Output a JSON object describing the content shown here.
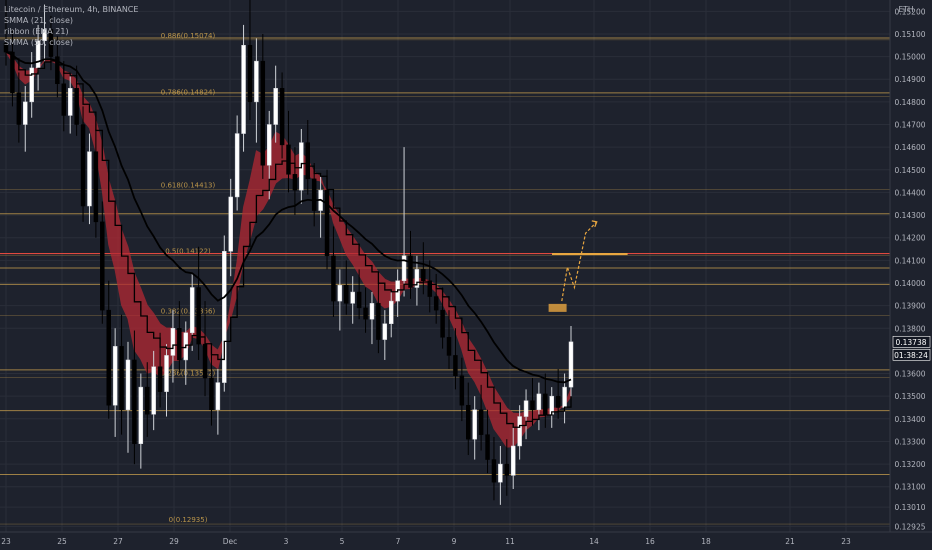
{
  "legend": {
    "symbol": "Litecoin / Ethereum, 4h, BINANCE",
    "smma21": "SMMA (21, close)",
    "ribbon": "ribbon (EMA 21)",
    "smma50": "SMMA (50, close)"
  },
  "currency": "ETH",
  "last_price": "0.13738",
  "countdown": "01:38:24",
  "colors": {
    "background": "#1e222d",
    "grid": "#2a2e39",
    "bull": "#ffffff",
    "bear": "#000000",
    "ribbon": "#b22833",
    "smma": "#000000",
    "fib": "#c9a04d",
    "resistance": "#e0493f",
    "target": "#e8a640"
  },
  "chart_data": {
    "type": "candlestick",
    "y_axis": {
      "min": 0.129,
      "max": 0.1525,
      "ticks": [
        "0.15200",
        "0.15100",
        "0.15000",
        "0.14900",
        "0.14800",
        "0.14700",
        "0.14600",
        "0.14500",
        "0.14400",
        "0.14300",
        "0.14200",
        "0.14100",
        "0.14000",
        "0.13900",
        "0.13800",
        "0.13600",
        "0.13500",
        "0.13400",
        "0.13300",
        "0.13200",
        "0.13100",
        "0.13010",
        "0.12925"
      ]
    },
    "x_axis": {
      "labels": [
        {
          "label": "23",
          "day": 23
        },
        {
          "label": "25",
          "day": 25
        },
        {
          "label": "27",
          "day": 27
        },
        {
          "label": "29",
          "day": 29
        },
        {
          "label": "Dec",
          "day": 31
        },
        {
          "label": "3",
          "day": 33
        },
        {
          "label": "5",
          "day": 35
        },
        {
          "label": "7",
          "day": 37
        },
        {
          "label": "9",
          "day": 39
        },
        {
          "label": "11",
          "day": 41
        },
        {
          "label": "14",
          "day": 44
        },
        {
          "label": "16",
          "day": 46
        },
        {
          "label": "18",
          "day": 48
        },
        {
          "label": "21",
          "day": 51
        },
        {
          "label": "23",
          "day": 53
        }
      ]
    },
    "fib_levels": [
      {
        "label": "0.886(0.15074)",
        "value": 0.15074
      },
      {
        "label": "0.786(0.14824)",
        "value": 0.14824
      },
      {
        "label": "0.618(0.14413)",
        "value": 0.14413
      },
      {
        "label": "0.5(0.14122)",
        "value": 0.14122
      },
      {
        "label": "0.382(0.13856)",
        "value": 0.13856
      },
      {
        "label": "0.236(0.13582)",
        "value": 0.13582
      },
      {
        "label": "0(0.12935)",
        "value": 0.12935
      }
    ],
    "horizontal_lines": [
      0.15082,
      0.1484,
      0.14306,
      0.14066,
      0.13994,
      0.13616,
      0.13436,
      0.13154
    ],
    "resistance_line": 0.1413,
    "target_box": {
      "day": 42.7,
      "value": 0.1389
    },
    "target_line": {
      "from_day": 42.5,
      "to_day": 45.2,
      "value": 0.14128
    },
    "projection_path": [
      {
        "day": 42.85,
        "value": 0.1392
      },
      {
        "day": 43.05,
        "value": 0.1407
      },
      {
        "day": 43.3,
        "value": 0.1398
      },
      {
        "day": 43.7,
        "value": 0.1422
      },
      {
        "day": 44.1,
        "value": 0.1427
      }
    ],
    "series": [
      {
        "name": "candles",
        "ohlc": [
          [
            0.1506,
            0.1525,
            0.1496,
            0.1502
          ],
          [
            0.1502,
            0.1512,
            0.1478,
            0.1484
          ],
          [
            0.1484,
            0.1493,
            0.1462,
            0.147
          ],
          [
            0.147,
            0.1487,
            0.1458,
            0.148
          ],
          [
            0.148,
            0.1502,
            0.1473,
            0.1495
          ],
          [
            0.1495,
            0.1514,
            0.1485,
            0.1507
          ],
          [
            0.1507,
            0.1523,
            0.1496,
            0.1512
          ],
          [
            0.1512,
            0.1518,
            0.1494,
            0.15
          ],
          [
            0.15,
            0.1509,
            0.1482,
            0.1488
          ],
          [
            0.1488,
            0.1498,
            0.1467,
            0.1474
          ],
          [
            0.1474,
            0.1492,
            0.1466,
            0.1486
          ],
          [
            0.1486,
            0.1496,
            0.1465,
            0.147
          ],
          [
            0.147,
            0.1478,
            0.1427,
            0.1434
          ],
          [
            0.1434,
            0.1466,
            0.1426,
            0.1458
          ],
          [
            0.1458,
            0.1468,
            0.142,
            0.1427
          ],
          [
            0.1427,
            0.1436,
            0.1382,
            0.1388
          ],
          [
            0.1388,
            0.1401,
            0.134,
            0.1346
          ],
          [
            0.1346,
            0.138,
            0.1332,
            0.1372
          ],
          [
            0.1372,
            0.1386,
            0.1333,
            0.1344
          ],
          [
            0.1344,
            0.1374,
            0.1325,
            0.1366
          ],
          [
            0.1366,
            0.1379,
            0.132,
            0.1329
          ],
          [
            0.1329,
            0.136,
            0.1318,
            0.1354
          ],
          [
            0.1354,
            0.1365,
            0.1332,
            0.1342
          ],
          [
            0.1342,
            0.137,
            0.1335,
            0.1363
          ],
          [
            0.1363,
            0.1378,
            0.1345,
            0.1352
          ],
          [
            0.1352,
            0.1373,
            0.1341,
            0.1368
          ],
          [
            0.1368,
            0.1388,
            0.1356,
            0.138
          ],
          [
            0.138,
            0.1392,
            0.136,
            0.1366
          ],
          [
            0.1366,
            0.1383,
            0.1355,
            0.1378
          ],
          [
            0.1378,
            0.1404,
            0.137,
            0.1398
          ],
          [
            0.1398,
            0.1416,
            0.1366,
            0.1373
          ],
          [
            0.1373,
            0.1392,
            0.135,
            0.1358
          ],
          [
            0.1358,
            0.1372,
            0.1337,
            0.1344
          ],
          [
            0.1344,
            0.1362,
            0.1333,
            0.1356
          ],
          [
            0.1356,
            0.1421,
            0.1352,
            0.1414
          ],
          [
            0.1414,
            0.1446,
            0.1403,
            0.1438
          ],
          [
            0.1438,
            0.1474,
            0.1432,
            0.1466
          ],
          [
            0.1466,
            0.1514,
            0.1458,
            0.1505
          ],
          [
            0.1505,
            0.1525,
            0.1472,
            0.148
          ],
          [
            0.148,
            0.1508,
            0.1462,
            0.1498
          ],
          [
            0.1498,
            0.151,
            0.1446,
            0.1452
          ],
          [
            0.1452,
            0.1476,
            0.1437,
            0.147
          ],
          [
            0.147,
            0.1496,
            0.1462,
            0.1486
          ],
          [
            0.1486,
            0.1493,
            0.1455,
            0.1461
          ],
          [
            0.1461,
            0.1476,
            0.144,
            0.1448
          ],
          [
            0.1448,
            0.146,
            0.143,
            0.1441
          ],
          [
            0.1441,
            0.1468,
            0.1435,
            0.1462
          ],
          [
            0.1462,
            0.1472,
            0.1439,
            0.1446
          ],
          [
            0.1446,
            0.1453,
            0.1425,
            0.1432
          ],
          [
            0.1432,
            0.1448,
            0.142,
            0.1441
          ],
          [
            0.1441,
            0.145,
            0.1406,
            0.1412
          ],
          [
            0.1412,
            0.1425,
            0.1385,
            0.1392
          ],
          [
            0.1392,
            0.1406,
            0.1379,
            0.1399
          ],
          [
            0.1399,
            0.141,
            0.1386,
            0.1391
          ],
          [
            0.1391,
            0.1403,
            0.1382,
            0.1396
          ],
          [
            0.1396,
            0.1406,
            0.1384,
            0.1389
          ],
          [
            0.1389,
            0.1398,
            0.1378,
            0.1384
          ],
          [
            0.1384,
            0.1396,
            0.1373,
            0.1391
          ],
          [
            0.1391,
            0.14,
            0.1369,
            0.1375
          ],
          [
            0.1375,
            0.1388,
            0.1366,
            0.1382
          ],
          [
            0.1382,
            0.1396,
            0.1376,
            0.1392
          ],
          [
            0.1392,
            0.1406,
            0.1385,
            0.1401
          ],
          [
            0.1401,
            0.146,
            0.1394,
            0.1412
          ],
          [
            0.1412,
            0.1423,
            0.1393,
            0.1398
          ],
          [
            0.1398,
            0.1412,
            0.139,
            0.1406
          ],
          [
            0.1406,
            0.1418,
            0.1395,
            0.1401
          ],
          [
            0.1401,
            0.141,
            0.1387,
            0.1394
          ],
          [
            0.1394,
            0.1404,
            0.1382,
            0.1388
          ],
          [
            0.1388,
            0.1398,
            0.1371,
            0.1376
          ],
          [
            0.1376,
            0.1388,
            0.1362,
            0.1368
          ],
          [
            0.1368,
            0.138,
            0.1353,
            0.1359
          ],
          [
            0.1359,
            0.1367,
            0.1339,
            0.1346
          ],
          [
            0.1346,
            0.1356,
            0.1324,
            0.1331
          ],
          [
            0.1331,
            0.135,
            0.1322,
            0.1344
          ],
          [
            0.1344,
            0.1355,
            0.1326,
            0.1333
          ],
          [
            0.1333,
            0.1344,
            0.1316,
            0.1322
          ],
          [
            0.1322,
            0.1332,
            0.1304,
            0.1312
          ],
          [
            0.1312,
            0.1328,
            0.1302,
            0.132
          ],
          [
            0.132,
            0.1331,
            0.1306,
            0.1315
          ],
          [
            0.1315,
            0.1336,
            0.1309,
            0.1328
          ],
          [
            0.1328,
            0.1346,
            0.1322,
            0.1341
          ],
          [
            0.1341,
            0.1353,
            0.1331,
            0.1348
          ],
          [
            0.1348,
            0.1358,
            0.1337,
            0.1344
          ],
          [
            0.1344,
            0.1356,
            0.1335,
            0.1351
          ],
          [
            0.1351,
            0.136,
            0.1336,
            0.1342
          ],
          [
            0.1342,
            0.1354,
            0.1336,
            0.135
          ],
          [
            0.135,
            0.1362,
            0.134,
            0.1345
          ],
          [
            0.1345,
            0.136,
            0.1338,
            0.1354
          ],
          [
            0.1354,
            0.1381,
            0.1349,
            0.1374
          ]
        ]
      }
    ]
  }
}
